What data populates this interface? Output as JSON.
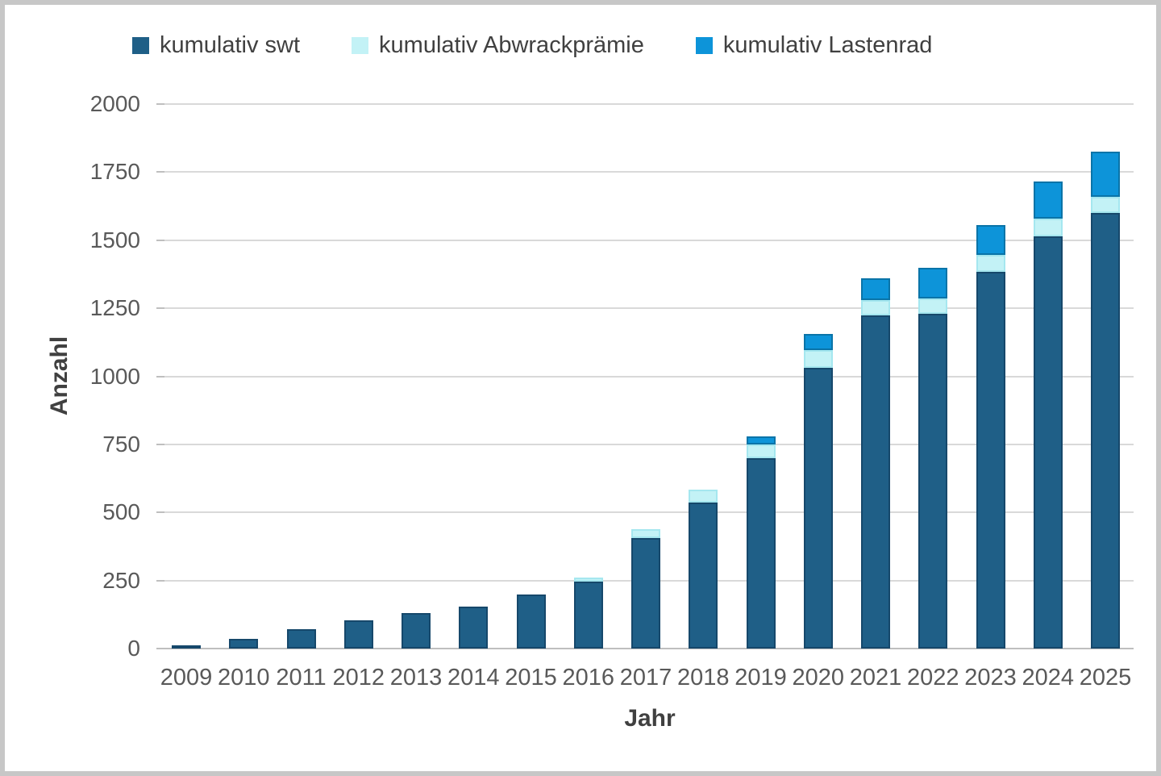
{
  "legend": {
    "items": [
      {
        "label": "kumulativ swt",
        "color": "#1f5f87"
      },
      {
        "label": "kumulativ Abwrackprämie",
        "color": "#c3f2f6"
      },
      {
        "label": "kumulativ Lastenrad",
        "color": "#0d94d9"
      }
    ]
  },
  "axes": {
    "y_title": "Anzahl",
    "x_title": "Jahr"
  },
  "colors": {
    "gridline": "#d9d9d9",
    "axis_line": "#bfbfbf",
    "tick_text": "#595959",
    "title_text": "#404040",
    "frame_border": "#c7c7c7",
    "background": "#ffffff"
  },
  "chart_data": {
    "type": "bar",
    "stacked": true,
    "title": "",
    "xlabel": "Jahr",
    "ylabel": "Anzahl",
    "ylim": [
      0,
      2000
    ],
    "yticks": [
      0,
      250,
      500,
      750,
      1000,
      1250,
      1500,
      1750,
      2000
    ],
    "grid": true,
    "legend_position": "top",
    "categories": [
      "2009",
      "2010",
      "2011",
      "2012",
      "2013",
      "2014",
      "2015",
      "2016",
      "2017",
      "2018",
      "2019",
      "2020",
      "2021",
      "2022",
      "2023",
      "2024",
      "2025"
    ],
    "series": [
      {
        "name": "kumulativ swt",
        "color": "#1f5f87",
        "border_color": "#16486b",
        "values": [
          13,
          35,
          70,
          105,
          130,
          155,
          200,
          245,
          405,
          535,
          700,
          1030,
          1225,
          1230,
          1385,
          1515,
          1600
        ]
      },
      {
        "name": "kumulativ Abwrackprämie",
        "color": "#c3f2f6",
        "border_color": "#a5e7ef",
        "values": [
          0,
          0,
          0,
          0,
          0,
          0,
          0,
          15,
          35,
          50,
          50,
          65,
          55,
          55,
          60,
          65,
          60
        ]
      },
      {
        "name": "kumulativ Lastenrad",
        "color": "#0d94d9",
        "border_color": "#0a74a8",
        "values": [
          0,
          0,
          0,
          0,
          0,
          0,
          0,
          0,
          0,
          0,
          30,
          60,
          80,
          115,
          110,
          135,
          165
        ]
      }
    ],
    "totals": [
      13,
      35,
      70,
      105,
      130,
      155,
      200,
      260,
      440,
      585,
      780,
      1155,
      1360,
      1400,
      1555,
      1715,
      1825
    ]
  }
}
